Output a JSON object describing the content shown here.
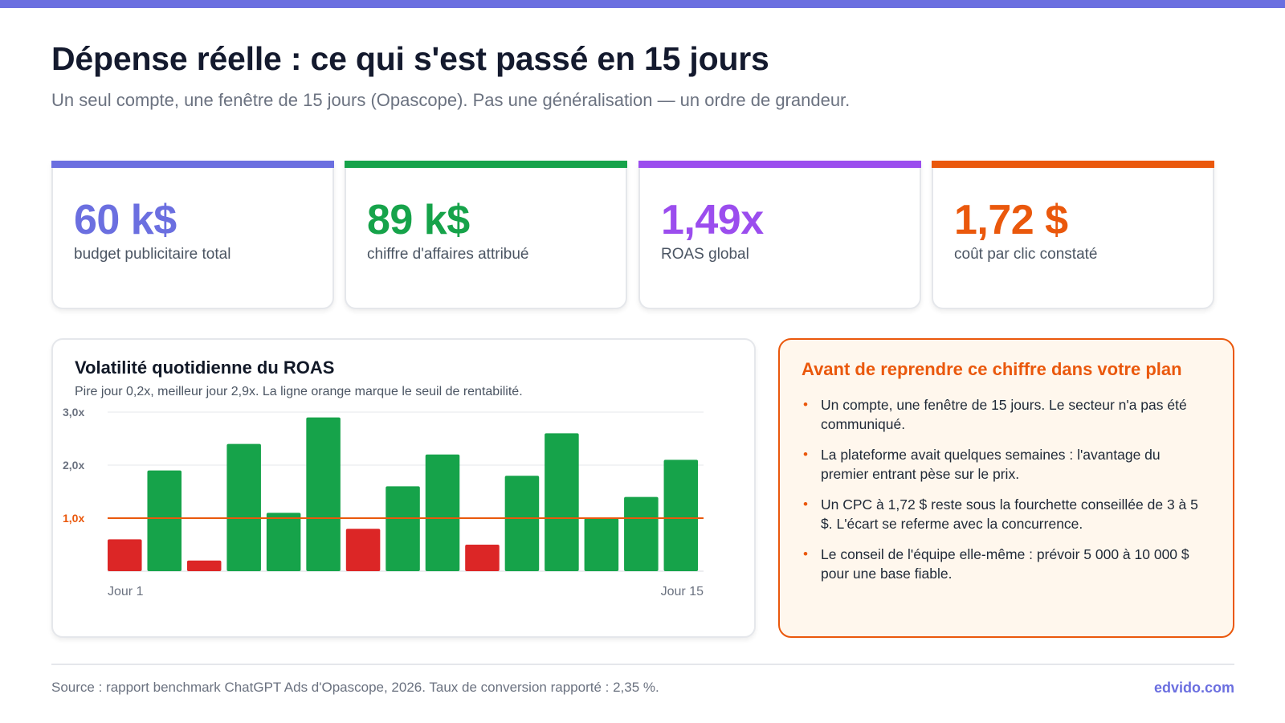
{
  "header": {
    "title": "Dépense réelle : ce qui s'est passé en 15 jours",
    "subtitle": "Un seul compte, une fenêtre de 15 jours (Opascope). Pas une généralisation — un ordre de grandeur."
  },
  "kpis": [
    {
      "value": "60 k$",
      "label": "budget publicitaire total",
      "color": "#6b6fe0"
    },
    {
      "value": "89 k$",
      "label": "chiffre d'affaires attribué",
      "color": "#16a34a"
    },
    {
      "value": "1,49x",
      "label": "ROAS global",
      "color": "#9b4dee"
    },
    {
      "value": "1,72 $",
      "label": "coût par clic constaté",
      "color": "#ea580c"
    }
  ],
  "chart_card": {
    "title": "Volatilité quotidienne du ROAS",
    "subtitle": "Pire jour 0,2x, meilleur jour 2,9x. La ligne orange marque le seuil de rentabilité."
  },
  "chart_data": {
    "type": "bar",
    "title": "Volatilité quotidienne du ROAS",
    "categories": [
      "Jour 1",
      "",
      "",
      "",
      "",
      "",
      "",
      "",
      "",
      "",
      "",
      "",
      "",
      "",
      "Jour 15"
    ],
    "values": [
      0.6,
      1.9,
      0.2,
      2.4,
      1.1,
      2.9,
      0.8,
      1.6,
      2.2,
      0.5,
      1.8,
      2.6,
      1.0,
      1.4,
      2.1
    ],
    "y_ticks": [
      {
        "value": 1.0,
        "label": "1,0x"
      },
      {
        "value": 2.0,
        "label": "2,0x"
      },
      {
        "value": 3.0,
        "label": "3,0x"
      }
    ],
    "ylim": [
      0,
      3.0
    ],
    "threshold": 1.0,
    "grid": true,
    "colors": {
      "above": "#16a34a",
      "below": "#dc2626",
      "threshold": "#ea580c",
      "grid": "#e5e7eb",
      "axis_label": "#6b7280"
    }
  },
  "note": {
    "title": "Avant de reprendre ce chiffre dans votre plan",
    "bullet_icon": "•",
    "items": [
      "Un compte, une fenêtre de 15 jours. Le secteur n'a pas été communiqué.",
      "La plateforme avait quelques semaines : l'avantage du premier entrant pèse sur le prix.",
      "Un CPC à 1,72 $ reste sous la fourchette conseillée de 3 à 5 $. L'écart se referme avec la concurrence.",
      "Le conseil de l'équipe elle-même : prévoir 5 000 à 10 000 $ pour une base fiable."
    ]
  },
  "footer": {
    "source": "Source : rapport benchmark ChatGPT Ads d'Opascope, 2026. Taux de conversion rapporté : 2,35 %.",
    "brand": "edvido.com"
  },
  "theme": {
    "accent": "#6b6fe0",
    "warning": "#ea580c"
  }
}
